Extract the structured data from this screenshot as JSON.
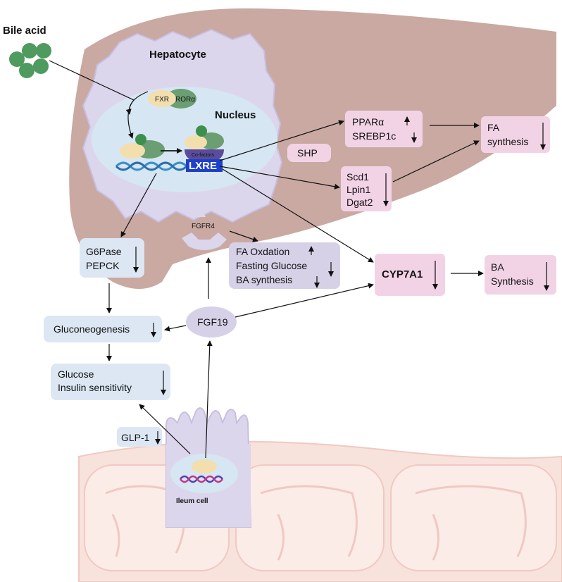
{
  "labels": {
    "bile_acid": "Bile acid",
    "hepatocyte": "Hepatocyte",
    "nucleus": "Nucleus",
    "fxr": "FXR",
    "rora": "RORα",
    "co_factors": "Co-factors",
    "lxre": "LXRE",
    "shp": "SHP",
    "fgfr4": "FGFR4",
    "fgf19": "FGF19",
    "glp1": "GLP-1",
    "ileum_cell": "Ileum cell"
  },
  "boxes": {
    "ppar": [
      "PPARα",
      "SREBP1c"
    ],
    "fa_synthesis": [
      "FA",
      "synthesis"
    ],
    "scd": [
      "Scd1",
      "Lpin1",
      "Dgat2"
    ],
    "g6pase": [
      "G6Pase",
      "PEPCK"
    ],
    "fa_oxdation": [
      "FA Oxdation",
      "Fasting Glucose",
      "BA synthesis"
    ],
    "cyp7a1": [
      "CYP7A1"
    ],
    "ba_synthesis": [
      "BA",
      "Synthesis"
    ],
    "gluconeogenesis": [
      "Gluconeogenesis"
    ],
    "glucose": [
      "Glucose",
      "Insulin sensitivity"
    ]
  },
  "colors": {
    "liver": "#c9a9a2",
    "cell": "#dcd6ec",
    "nucleus": "#d6e6f2",
    "pink_box": "#f2d3e6",
    "blue_box": "#dce7f3",
    "purple_box": "#d7d1e8",
    "green": "#4f9a5f",
    "intestine": "#f6dcd6"
  }
}
